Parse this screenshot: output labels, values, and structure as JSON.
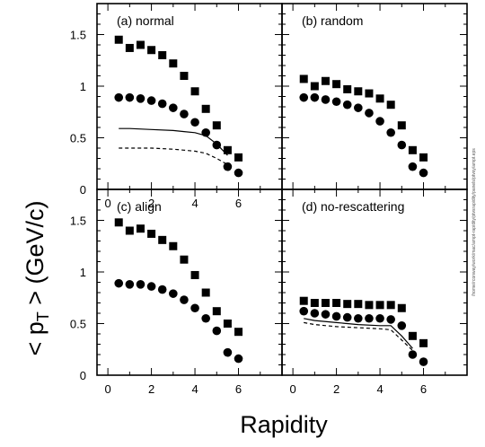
{
  "figure": {
    "ylabel_main": "< p",
    "ylabel_sub": "T",
    "ylabel_rest": " > (GeV/c)",
    "xlabel": "Rapidity",
    "side_note": "/home/rconway/work/mac/ampt-rapidity/ptvsrapidity/panels/ptvsy/ampt.eps"
  },
  "chart_data": [
    {
      "type": "scatter",
      "title": "(a) normal",
      "xlim": [
        -0.5,
        8
      ],
      "ylim": [
        0,
        1.8
      ],
      "xticks": [
        0,
        2,
        4,
        6
      ],
      "yticks": [
        "0",
        "0.5",
        "1",
        "1.5"
      ],
      "series": [
        {
          "marker": "square",
          "x": [
            0.5,
            1,
            1.5,
            2,
            2.5,
            3,
            3.5,
            4,
            4.5,
            5,
            5.5,
            6
          ],
          "y": [
            1.45,
            1.37,
            1.4,
            1.35,
            1.3,
            1.22,
            1.1,
            0.95,
            0.78,
            0.62,
            0.38,
            0.31
          ]
        },
        {
          "marker": "circle",
          "x": [
            0.5,
            1,
            1.5,
            2,
            2.5,
            3,
            3.5,
            4,
            4.5,
            5,
            5.5,
            6
          ],
          "y": [
            0.89,
            0.89,
            0.88,
            0.86,
            0.83,
            0.79,
            0.73,
            0.65,
            0.55,
            0.43,
            0.22,
            0.16
          ]
        },
        {
          "marker": "line-solid",
          "x": [
            0.5,
            1,
            2,
            3,
            3.5,
            4,
            4.5,
            5,
            5.5
          ],
          "y": [
            0.59,
            0.59,
            0.58,
            0.57,
            0.56,
            0.55,
            0.52,
            0.44,
            0.33
          ]
        },
        {
          "marker": "line-dashed",
          "x": [
            0.5,
            1,
            2,
            3,
            3.5,
            4,
            4.5,
            5,
            5.5
          ],
          "y": [
            0.4,
            0.4,
            0.4,
            0.39,
            0.38,
            0.37,
            0.35,
            0.3,
            0.24
          ]
        }
      ]
    },
    {
      "type": "scatter",
      "title": "(b) random",
      "xlim": [
        -0.5,
        8
      ],
      "ylim": [
        0,
        1.8
      ],
      "xticks": [],
      "yticks": [],
      "series": [
        {
          "marker": "square",
          "x": [
            0.5,
            1,
            1.5,
            2,
            2.5,
            3,
            3.5,
            4,
            4.5,
            5,
            5.5,
            6
          ],
          "y": [
            1.07,
            1.0,
            1.05,
            1.02,
            0.97,
            0.95,
            0.93,
            0.88,
            0.82,
            0.62,
            0.38,
            0.31
          ]
        },
        {
          "marker": "circle",
          "x": [
            0.5,
            1,
            1.5,
            2,
            2.5,
            3,
            3.5,
            4,
            4.5,
            5,
            5.5,
            6
          ],
          "y": [
            0.89,
            0.89,
            0.87,
            0.85,
            0.82,
            0.79,
            0.74,
            0.66,
            0.55,
            0.43,
            0.22,
            0.16
          ]
        }
      ]
    },
    {
      "type": "scatter",
      "title": "(c) align",
      "xlim": [
        -0.5,
        8
      ],
      "ylim": [
        0,
        1.8
      ],
      "xticks": [
        "0",
        "2",
        "4",
        "6"
      ],
      "yticks": [
        "0",
        "0.5",
        "1",
        "1.5"
      ],
      "series": [
        {
          "marker": "square",
          "x": [
            0.5,
            1,
            1.5,
            2,
            2.5,
            3,
            3.5,
            4,
            4.5,
            5,
            5.5,
            6
          ],
          "y": [
            1.48,
            1.4,
            1.42,
            1.37,
            1.31,
            1.25,
            1.12,
            0.97,
            0.8,
            0.62,
            0.5,
            0.42
          ]
        },
        {
          "marker": "circle",
          "x": [
            0.5,
            1,
            1.5,
            2,
            2.5,
            3,
            3.5,
            4,
            4.5,
            5,
            5.5,
            6
          ],
          "y": [
            0.89,
            0.88,
            0.88,
            0.86,
            0.83,
            0.79,
            0.73,
            0.65,
            0.55,
            0.43,
            0.22,
            0.16
          ]
        }
      ]
    },
    {
      "type": "scatter",
      "title": "(d) no-rescattering",
      "xlim": [
        -0.5,
        8
      ],
      "ylim": [
        0,
        1.8
      ],
      "xticks": [
        "0",
        "2",
        "4",
        "6"
      ],
      "yticks": [],
      "series": [
        {
          "marker": "square",
          "x": [
            0.5,
            1,
            1.5,
            2,
            2.5,
            3,
            3.5,
            4,
            4.5,
            5,
            5.5,
            6
          ],
          "y": [
            0.72,
            0.7,
            0.7,
            0.7,
            0.69,
            0.69,
            0.68,
            0.68,
            0.68,
            0.65,
            0.38,
            0.31
          ]
        },
        {
          "marker": "circle",
          "x": [
            0.5,
            1,
            1.5,
            2,
            2.5,
            3,
            3.5,
            4,
            4.5,
            5,
            5.5,
            6
          ],
          "y": [
            0.62,
            0.6,
            0.59,
            0.57,
            0.56,
            0.55,
            0.55,
            0.55,
            0.54,
            0.48,
            0.2,
            0.13
          ]
        },
        {
          "marker": "line-solid",
          "x": [
            0.5,
            1,
            2,
            3,
            4,
            4.5,
            5,
            5.5
          ],
          "y": [
            0.55,
            0.53,
            0.51,
            0.49,
            0.48,
            0.48,
            0.38,
            0.26
          ]
        },
        {
          "marker": "line-dashed",
          "x": [
            0.5,
            1,
            2,
            3,
            4,
            4.5,
            5,
            5.5
          ],
          "y": [
            0.51,
            0.49,
            0.47,
            0.46,
            0.45,
            0.44,
            0.34,
            0.24
          ]
        }
      ]
    }
  ]
}
